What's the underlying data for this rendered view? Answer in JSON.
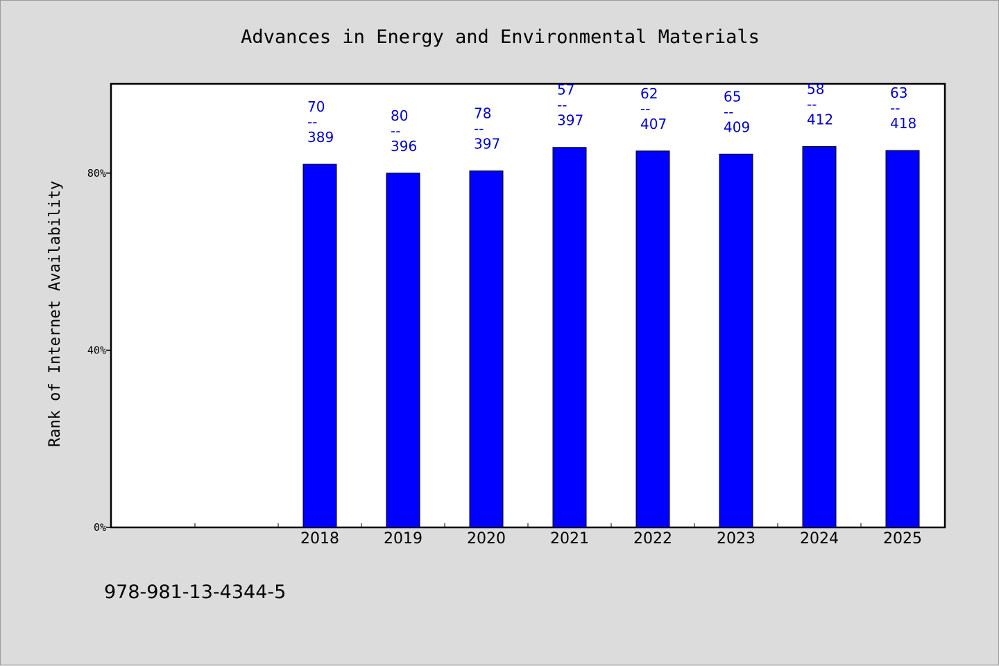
{
  "chart_data": {
    "type": "bar",
    "title": "Advances in Energy and Environmental Materials",
    "ylabel": "Rank of Internet Availability",
    "xlabel": "",
    "categories": [
      "",
      "",
      "2018",
      "2019",
      "2020",
      "2021",
      "2022",
      "2023",
      "2024",
      "2025"
    ],
    "values": [
      null,
      null,
      82,
      80,
      80.5,
      85.8,
      85,
      84.3,
      86,
      85.1
    ],
    "data_labels": [
      [
        "",
        "",
        ""
      ],
      [
        "",
        "",
        ""
      ],
      [
        "70",
        "--",
        "389"
      ],
      [
        "80",
        "--",
        "396"
      ],
      [
        "78",
        "--",
        "397"
      ],
      [
        "57",
        "--",
        "397"
      ],
      [
        "62",
        "--",
        "407"
      ],
      [
        "65",
        "--",
        "409"
      ],
      [
        "58",
        "--",
        "412"
      ],
      [
        "63",
        "--",
        "418"
      ]
    ],
    "ylim": [
      0,
      100
    ],
    "yticks": [
      {
        "value": 0,
        "label": "0%"
      },
      {
        "value": 40,
        "label": "40%"
      },
      {
        "value": 80,
        "label": "80%"
      }
    ],
    "grid": false,
    "legend": "none",
    "colors": {
      "bar": "#0000ff",
      "data_label": "#0000cc",
      "background": "#dcdcdc",
      "plot_background": "#ffffff"
    }
  },
  "footer": {
    "isbn": "978-981-13-4344-5"
  }
}
